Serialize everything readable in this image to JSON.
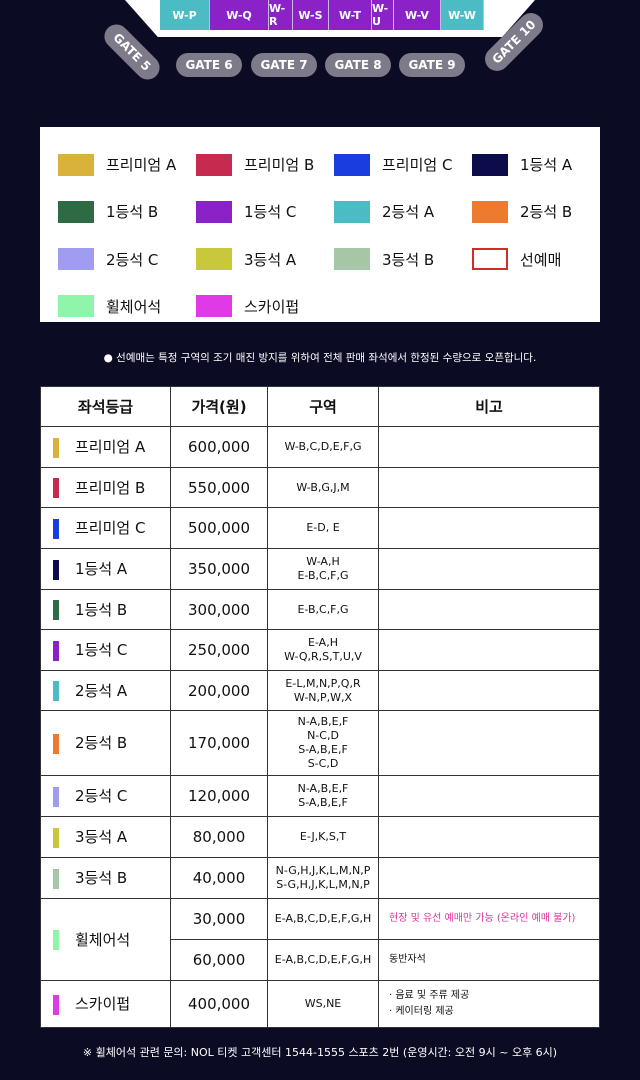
{
  "map": {
    "sections": [
      {
        "label": "W-P",
        "color": "#4bbcc4"
      },
      {
        "label": "W-Q",
        "color": "#8a22c8"
      },
      {
        "label": "W-R",
        "color": "#8a22c8"
      },
      {
        "label": "W-S",
        "color": "#8a22c8"
      },
      {
        "label": "W-T",
        "color": "#8a22c8"
      },
      {
        "label": "W-U",
        "color": "#8a22c8"
      },
      {
        "label": "W-V",
        "color": "#8a22c8"
      },
      {
        "label": "W-W",
        "color": "#4bbcc4"
      }
    ],
    "gates": [
      "GATE 5",
      "GATE 6",
      "GATE 7",
      "GATE 8",
      "GATE 9",
      "GATE 10"
    ]
  },
  "legend": [
    {
      "label": "프리미엄 A",
      "color": "#d8b23a"
    },
    {
      "label": "프리미엄 B",
      "color": "#c62a4e"
    },
    {
      "label": "프리미엄 C",
      "color": "#1a3de0"
    },
    {
      "label": "1등석 A",
      "color": "#0c0c4a"
    },
    {
      "label": "1등석 B",
      "color": "#2e6b45"
    },
    {
      "label": "1등석 C",
      "color": "#8a22c8"
    },
    {
      "label": "2등석 A",
      "color": "#4bbcc4"
    },
    {
      "label": "2등석 B",
      "color": "#ee7a30"
    },
    {
      "label": "2등석 C",
      "color": "#a09cf0"
    },
    {
      "label": "3등석 A",
      "color": "#c9c83c"
    },
    {
      "label": "3등석 B",
      "color": "#a7c6a6"
    },
    {
      "label": "선예매",
      "color": "outline:#d42a2a"
    },
    {
      "label": "휠체어석",
      "color": "#8ef5aa"
    },
    {
      "label": "스카이펍",
      "color": "#e03ae6"
    }
  ],
  "note": "● 선예매는 특정 구역의 조기 매진 방지를 위하여 전체 판매 좌석에서 한정된 수량으로 오픈합니다.",
  "table": {
    "headers": [
      "좌석등급",
      "가격(원)",
      "구역",
      "비고"
    ],
    "rows": [
      {
        "grade": "프리미엄 A",
        "color": "#d8b23a",
        "price": "600,000",
        "zone": "W-B,C,D,E,F,G",
        "note": ""
      },
      {
        "grade": "프리미엄 B",
        "color": "#c62a4e",
        "price": "550,000",
        "zone": "W-B,G,J,M",
        "note": ""
      },
      {
        "grade": "프리미엄 C",
        "color": "#1a3de0",
        "price": "500,000",
        "zone": "E-D, E",
        "note": ""
      },
      {
        "grade": "1등석 A",
        "color": "#0c0c4a",
        "price": "350,000",
        "zone": "W-A,H\nE-B,C,F,G",
        "note": ""
      },
      {
        "grade": "1등석 B",
        "color": "#2e6b45",
        "price": "300,000",
        "zone": "E-B,C,F,G",
        "note": ""
      },
      {
        "grade": "1등석 C",
        "color": "#8a22c8",
        "price": "250,000",
        "zone": "E-A,H\nW-Q,R,S,T,U,V",
        "note": ""
      },
      {
        "grade": "2등석 A",
        "color": "#4bbcc4",
        "price": "200,000",
        "zone": "E-L,M,N,P,Q,R\nW-N,P,W,X",
        "note": ""
      },
      {
        "grade": "2등석 B",
        "color": "#ee7a30",
        "price": "170,000",
        "zone": "N-A,B,E,F\nN-C,D\nS-A,B,E,F\nS-C,D",
        "note": ""
      },
      {
        "grade": "2등석 C",
        "color": "#a09cf0",
        "price": "120,000",
        "zone": "N-A,B,E,F\nS-A,B,E,F",
        "note": ""
      },
      {
        "grade": "3등석 A",
        "color": "#c9c83c",
        "price": "80,000",
        "zone": "E-J,K,S,T",
        "note": ""
      },
      {
        "grade": "3등석 B",
        "color": "#a7c6a6",
        "price": "40,000",
        "zone": "N-G,H,J,K,L,M,N,P\nS-G,H,J,K,L,M,N,P",
        "note": ""
      }
    ],
    "wheelchair": {
      "grade": "휠체어석",
      "color": "#8ef5aa",
      "rows": [
        {
          "price": "30,000",
          "zone": "E-A,B,C,D,E,F,G,H",
          "note": "현장 및 유선 예매만 가능 (온라인 예매 불가)"
        },
        {
          "price": "60,000",
          "zone": "E-A,B,C,D,E,F,G,H",
          "note": "동반자석"
        }
      ]
    },
    "skypub": {
      "grade": "스카이펍",
      "color": "#e03ae6",
      "price": "400,000",
      "zone": "WS,NE",
      "notes": [
        "· 음료 및 주류 제공",
        "· 케이터링 제공"
      ]
    }
  },
  "footer": "※ 휠체어석 관련 문의: NOL 티켓 고객센터 1544-1555 스포츠 2번 (운영시간: 오전 9시 ~ 오후 6시)"
}
